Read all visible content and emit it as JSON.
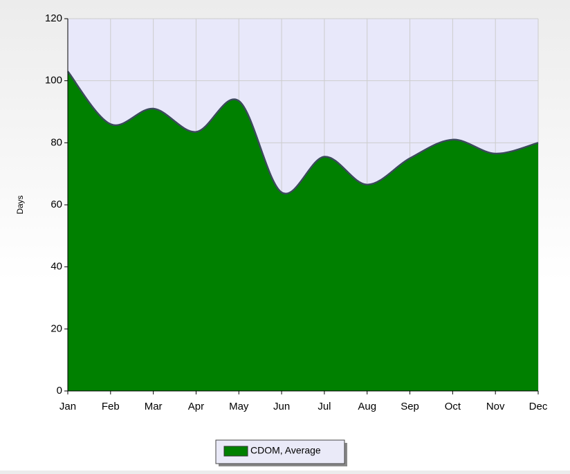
{
  "chart_data": {
    "type": "area",
    "y_label": "Days",
    "categories": [
      "Jan",
      "Feb",
      "Mar",
      "Apr",
      "May",
      "Jun",
      "Jul",
      "Aug",
      "Sep",
      "Oct",
      "Nov",
      "Dec"
    ],
    "series": [
      {
        "name": "CDOM, Average",
        "color": "#008000",
        "values": [
          103,
          86,
          91,
          83.5,
          93.5,
          64,
          75.5,
          66.5,
          75,
          81,
          76.5,
          80
        ]
      }
    ],
    "ylim": [
      0,
      120
    ],
    "yticks": [
      0,
      20,
      40,
      60,
      80,
      100,
      120
    ],
    "grid": true,
    "smooth": true,
    "legend": "bottom"
  }
}
